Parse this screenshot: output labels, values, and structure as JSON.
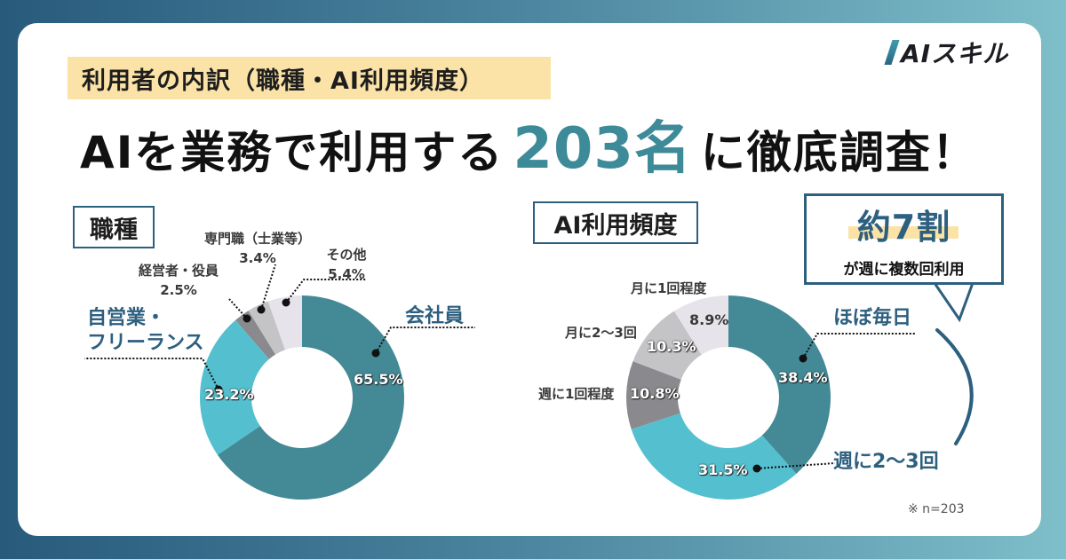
{
  "header": {
    "subtitle": "利用者の内訳（職種・AI利用頻度）",
    "headline_pre": "AIを業務で利用する",
    "headline_number": "203名",
    "headline_post": "に徹底調査！",
    "logo": "AIスキル"
  },
  "section_occupation": {
    "title": "職種"
  },
  "section_frequency": {
    "title": "AI利用頻度"
  },
  "callout": {
    "big": "約7割",
    "sub": "が週に複数回利用"
  },
  "note": "※ n=203",
  "colors": {
    "teal": "#438a96",
    "cyan": "#54c0cf",
    "dark_gray": "#8a8a8e",
    "mid_gray": "#c4c4c6",
    "light_gray": "#e6e4ea",
    "navy": "#2d5f7f",
    "highlight": "#fbe3a8",
    "accent_number": "#3d8a98"
  },
  "chart_data": [
    {
      "type": "pie",
      "subtype": "donut",
      "title": "職種",
      "categories": [
        "会社員",
        "自営業・フリーランス",
        "経営者・役員",
        "専門職（士業等）",
        "その他"
      ],
      "values": [
        65.5,
        23.2,
        2.5,
        3.4,
        5.4
      ],
      "labels": {
        "company": "会社員",
        "company_pct": "65.5%",
        "freelance_1": "自営業・",
        "freelance_2": "フリーランス",
        "freelance_pct": "23.2%",
        "exec": "経営者・役員",
        "exec_pct": "2.5%",
        "pro": "専門職（士業等）",
        "pro_pct": "3.4%",
        "other": "その他",
        "other_pct": "5.4%"
      },
      "colors": [
        "#438a96",
        "#54c0cf",
        "#8a8a8e",
        "#c4c4c6",
        "#e6e4ea"
      ],
      "start_angle": "12 o'clock, clockwise",
      "unit": "%"
    },
    {
      "type": "pie",
      "subtype": "donut",
      "title": "AI利用頻度",
      "categories": [
        "ほぼ毎日",
        "週に2〜3回",
        "週に1回程度",
        "月に2〜3回",
        "月に1回程度"
      ],
      "values": [
        38.4,
        31.5,
        10.8,
        10.3,
        8.9
      ],
      "labels": {
        "daily": "ほぼ毎日",
        "daily_pct": "38.4%",
        "weekly23": "週に2〜3回",
        "weekly23_pct": "31.5%",
        "weekly1": "週に1回程度",
        "weekly1_pct": "10.8%",
        "monthly23": "月に2〜3回",
        "monthly23_pct": "10.3%",
        "monthly1": "月に1回程度",
        "monthly1_pct": "8.9%"
      },
      "colors": [
        "#438a96",
        "#54c0cf",
        "#8a8a8e",
        "#c4c4c6",
        "#e6e4ea"
      ],
      "start_angle": "12 o'clock, clockwise",
      "unit": "%",
      "annotation": "約7割が週に複数回利用",
      "sample_size": "n=203"
    }
  ]
}
